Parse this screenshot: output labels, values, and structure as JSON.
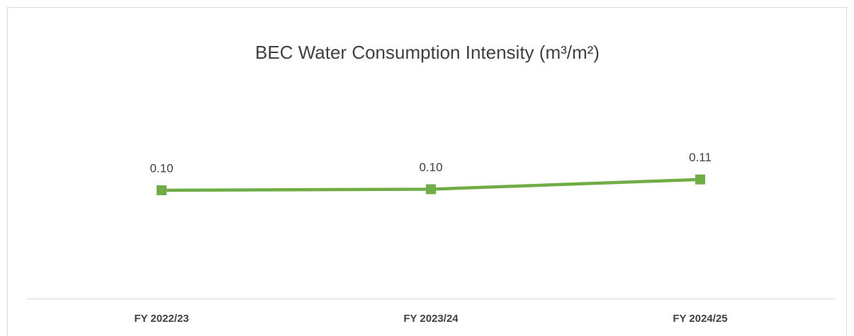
{
  "chart_data": {
    "type": "line",
    "title": "BEC Water Consumption Intensity (m³/m²)",
    "categories": [
      "FY 2022/23",
      "FY 2023/24",
      "FY 2024/25"
    ],
    "values": [
      0.1,
      0.101,
      0.11
    ],
    "value_labels": [
      "0.10",
      "0.10",
      "0.11"
    ],
    "color": "#70ad47",
    "ylim": [
      0,
      0.2
    ]
  }
}
